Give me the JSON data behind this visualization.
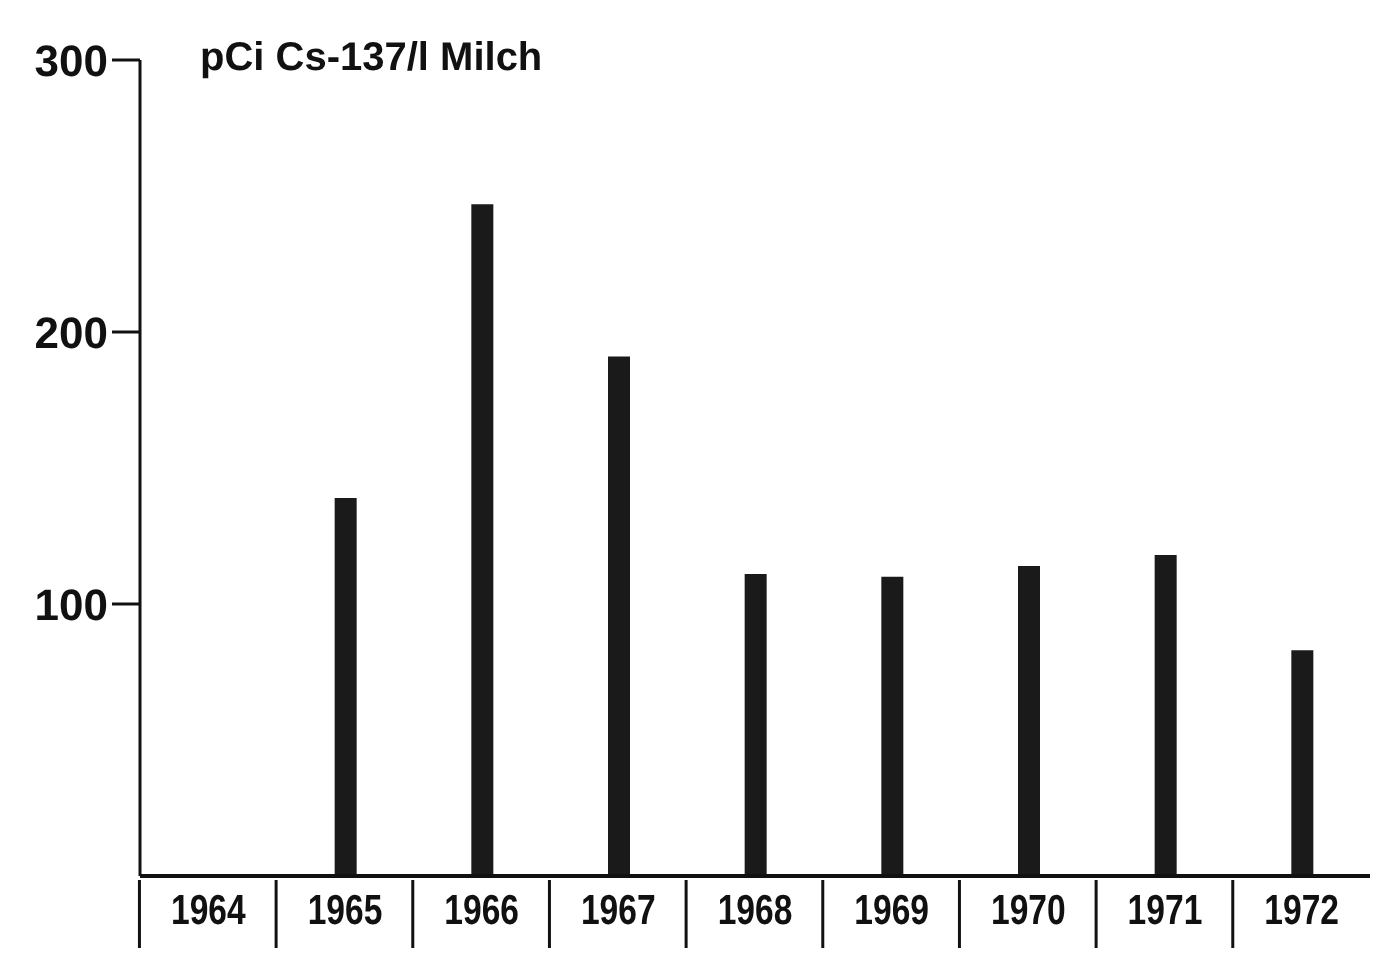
{
  "chart_data": {
    "type": "bar",
    "ylabel": "pCi Cs-137/l Milch",
    "categories": [
      "1964",
      "1965",
      "1966",
      "1967",
      "1968",
      "1969",
      "1970",
      "1971",
      "1972"
    ],
    "values": [
      null,
      139,
      247,
      191,
      111,
      110,
      114,
      118,
      83
    ],
    "color": "#1a1a1a",
    "ylim": [
      0,
      300
    ],
    "yticks": [
      100,
      200,
      300
    ],
    "grid": false
  }
}
